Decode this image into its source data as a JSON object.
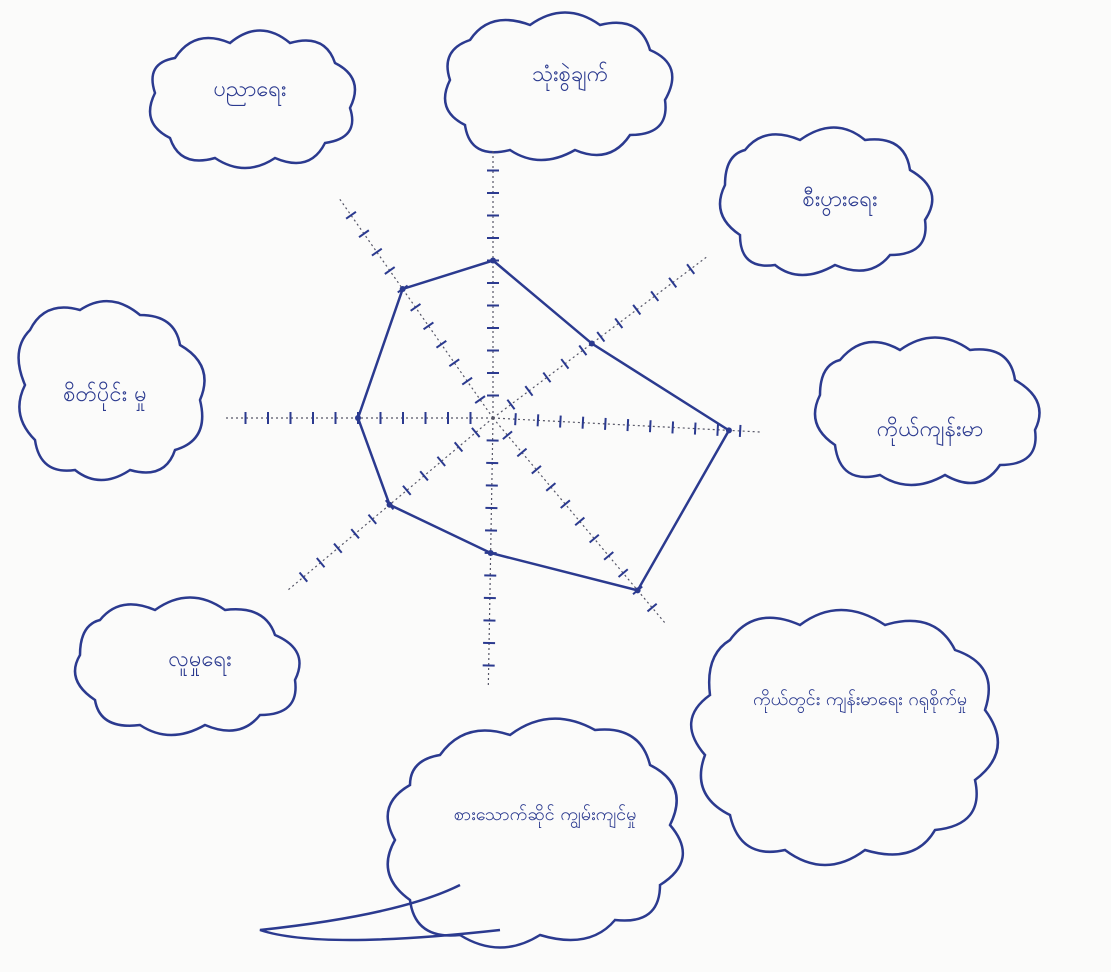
{
  "chart_data": {
    "type": "radar",
    "categories": [
      "သုံးစွဲချက်",
      "စီးပွားရေး",
      "ကိုယ်ကျန်းမာ",
      "ကိုယ်တွင်း ကျန်းမာရေး ဂရုစိုက်မှု",
      "စားသောက်ဆိုင် ကျွမ်းကျင်မှု",
      "လူမှုရေး",
      "စိတ်ပိုင်း မှု",
      "ပညာရေး"
    ],
    "series": [
      {
        "color": "#2b3a8f",
        "values": [
          7,
          5.5,
          10.5,
          10,
          6,
          6,
          6,
          7
        ]
      }
    ],
    "rlim": [
      0,
      12
    ],
    "rticks": [
      1,
      2,
      3,
      4,
      5,
      6,
      7,
      8,
      9,
      10,
      11
    ],
    "grid": false
  }
}
